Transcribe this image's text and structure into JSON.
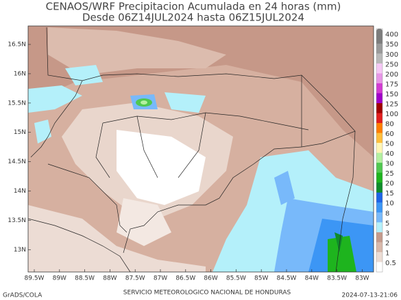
{
  "header": {
    "title": "CENAOS/WRF Precipitacion Acumulada en 24 horas (mm)",
    "subtitle": "Desde 06Z14JUL2024 hasta 06Z15JUL2024"
  },
  "map": {
    "lat_labels": [
      "16.5N",
      "16N",
      "15.5N",
      "15N",
      "14.5N",
      "14N",
      "13.5N",
      "13N"
    ],
    "lon_labels": [
      "89.5W",
      "89W",
      "88.5W",
      "88W",
      "87.5W",
      "87W",
      "86.5W",
      "86W",
      "85.5W",
      "85W",
      "84.5W",
      "84W",
      "83.5W",
      "83W"
    ]
  },
  "colorbar": [
    {
      "label": "400",
      "color": "#7d7d7d"
    },
    {
      "label": "350",
      "color": "#9a9a9a"
    },
    {
      "label": "300",
      "color": "#b9b9b9"
    },
    {
      "label": "250",
      "color": "#f5c8f5"
    },
    {
      "label": "200",
      "color": "#e696e6"
    },
    {
      "label": "175",
      "color": "#d23cd2"
    },
    {
      "label": "150",
      "color": "#a000c8"
    },
    {
      "label": "125",
      "color": "#a00000"
    },
    {
      "label": "100",
      "color": "#e11e1e"
    },
    {
      "label": "80",
      "color": "#ff7d00"
    },
    {
      "label": "60",
      "color": "#ffbe3c"
    },
    {
      "label": "50",
      "color": "#fff5b4"
    },
    {
      "label": "40",
      "color": "#b4f0a0"
    },
    {
      "label": "30",
      "color": "#50c850"
    },
    {
      "label": "25",
      "color": "#1eb41e"
    },
    {
      "label": "20",
      "color": "#0f8c2a"
    },
    {
      "label": "15",
      "color": "#1e64e6"
    },
    {
      "label": "10",
      "color": "#3c96f5"
    },
    {
      "label": "8",
      "color": "#78b9fa"
    },
    {
      "label": "5",
      "color": "#b4f0fa"
    },
    {
      "label": "3",
      "color": "#c49a8c"
    },
    {
      "label": "2",
      "color": "#d8b8aa"
    },
    {
      "label": "1",
      "color": "#ecdcd4"
    },
    {
      "label": "0.5",
      "color": "#ffffff"
    }
  ],
  "footer": {
    "left": "GrADS/COLA",
    "center": "SERVICIO METEOROLOGICO NACIONAL DE HONDURAS",
    "right": "2024-07-13-21:06"
  }
}
